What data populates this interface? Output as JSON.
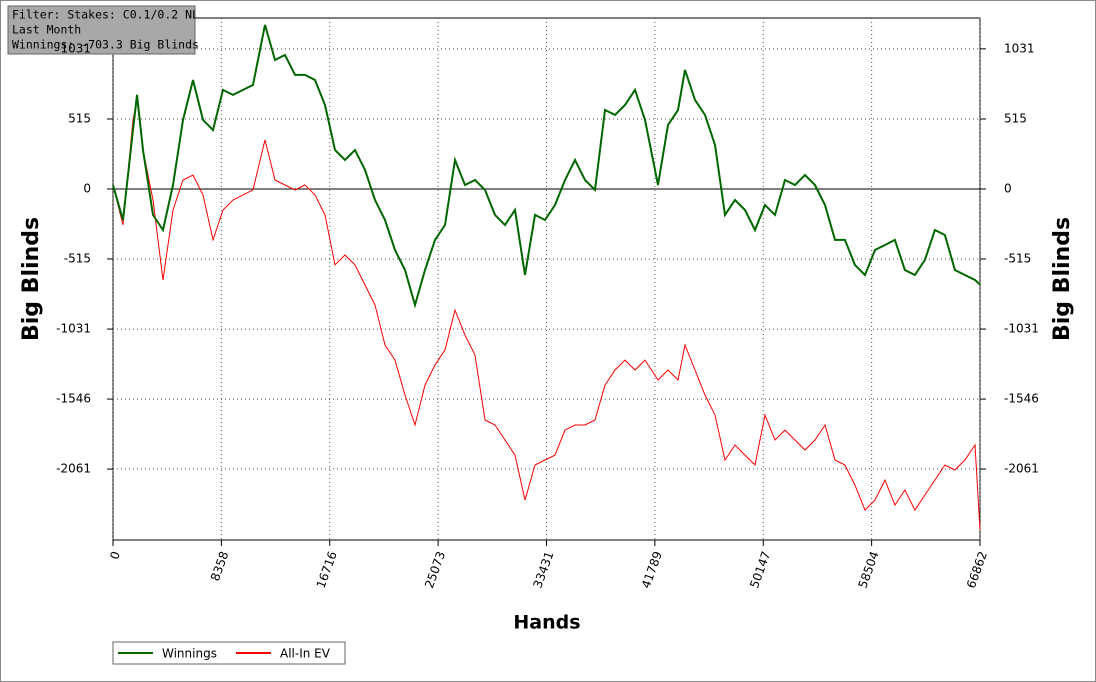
{
  "chart_data": {
    "type": "line",
    "annotations": [
      "Filter: Stakes: C0.1/0.2 NL",
      "Last Month",
      "Winnings: -703.3 Big Blinds"
    ],
    "x_label": "Hands",
    "y_label": "Big Blinds",
    "xlim": [
      0,
      66862
    ],
    "xticks": [
      0,
      8358,
      16716,
      25073,
      33431,
      41789,
      50147,
      58504,
      66862
    ],
    "ylim": [
      -2583,
      1258
    ],
    "yticks": [
      -2061,
      -1546,
      -1031,
      -515,
      0,
      515,
      1031
    ],
    "grid": true,
    "x": [
      0,
      771,
      1542,
      1851,
      2314,
      3085,
      3856,
      4627,
      5398,
      6170,
      6941,
      7712,
      8483,
      9254,
      10025,
      10796,
      11722,
      12493,
      13264,
      14035,
      14806,
      15578,
      16349,
      17120,
      17891,
      18662,
      19433,
      20204,
      20975,
      21746,
      22517,
      23288,
      24059,
      24830,
      25602,
      26374,
      27146,
      27917,
      28688,
      29459,
      30230,
      31001,
      31772,
      32543,
      33314,
      34085,
      34856,
      35627,
      36398,
      37170,
      37941,
      38712,
      39483,
      40254,
      41025,
      42028,
      42799,
      43570,
      44110,
      44881,
      45652,
      46423,
      47194,
      47966,
      48737,
      49508,
      50279,
      51050,
      51821,
      52592,
      53363,
      54134,
      54905,
      55676,
      56447,
      57218,
      57990,
      58761,
      59532,
      60303,
      61074,
      61845,
      62616,
      63387,
      64158,
      64929,
      65700,
      66476,
      66862
    ],
    "series": [
      {
        "name": "Winnings",
        "color": "#006600",
        "values": [
          29,
          -228,
          434,
          692,
          287,
          -191,
          -302,
          29,
          508,
          802,
          508,
          434,
          729,
          692,
          729,
          766,
          1207,
          949,
          986,
          839,
          839,
          802,
          618,
          287,
          213,
          287,
          140,
          -81,
          -228,
          -449,
          -596,
          -854,
          -596,
          -375,
          -265,
          213,
          29,
          66,
          -7,
          -191,
          -265,
          -155,
          -633,
          -191,
          -228,
          -118,
          66,
          213,
          66,
          -7,
          581,
          545,
          618,
          729,
          508,
          29,
          471,
          581,
          876,
          655,
          545,
          324,
          -191,
          -81,
          -155,
          -302,
          -118,
          -191,
          66,
          29,
          103,
          29,
          -118,
          -375,
          -375,
          -559,
          -633,
          -449,
          -412,
          -375,
          -596,
          -633,
          -522,
          -302,
          -339,
          -596,
          -633,
          -670,
          -703
        ]
      },
      {
        "name": "All-In EV",
        "color": "#ff0000",
        "values": [
          29,
          -265,
          508,
          655,
          287,
          -81,
          -670,
          -155,
          66,
          103,
          -44,
          -375,
          -155,
          -81,
          -44,
          -7,
          361,
          66,
          29,
          -7,
          29,
          -44,
          -191,
          -559,
          -486,
          -559,
          -707,
          -854,
          -1148,
          -1259,
          -1516,
          -1737,
          -1443,
          -1295,
          -1184,
          -891,
          -1075,
          -1222,
          -1700,
          -1737,
          -1847,
          -1958,
          -2289,
          -2031,
          -1994,
          -1958,
          -1774,
          -1737,
          -1737,
          -1700,
          -1443,
          -1332,
          -1259,
          -1332,
          -1259,
          -1406,
          -1332,
          -1406,
          -1148,
          -1332,
          -1516,
          -1663,
          -1994,
          -1884,
          -1958,
          -2031,
          -1663,
          -1847,
          -1774,
          -1847,
          -1921,
          -1847,
          -1737,
          -1994,
          -2031,
          -2178,
          -2363,
          -2289,
          -2142,
          -2326,
          -2215,
          -2363,
          -2252,
          -2142,
          -2031,
          -2068,
          -1994,
          -1884,
          -2510
        ]
      }
    ]
  }
}
